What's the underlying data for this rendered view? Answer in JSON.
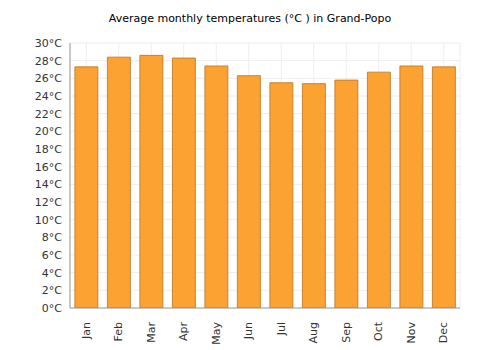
{
  "chart_data": {
    "type": "bar",
    "title": "Average monthly temperatures (°C ) in Grand-Popo",
    "categories": [
      "Jan",
      "Feb",
      "Mar",
      "Apr",
      "May",
      "Jun",
      "Jul",
      "Aug",
      "Sep",
      "Oct",
      "Nov",
      "Dec"
    ],
    "values": [
      27.3,
      28.4,
      28.6,
      28.3,
      27.4,
      26.3,
      25.5,
      25.4,
      25.8,
      26.7,
      27.4,
      27.3
    ],
    "color": "#fca232",
    "ylim": [
      0,
      30
    ],
    "yticks": [
      {
        "value": 0,
        "label": "0°C"
      },
      {
        "value": 2,
        "label": "2°C"
      },
      {
        "value": 4,
        "label": "4°C"
      },
      {
        "value": 6,
        "label": "6°C"
      },
      {
        "value": 8,
        "label": "8°C"
      },
      {
        "value": 10,
        "label": "10°C"
      },
      {
        "value": 12,
        "label": "12°C"
      },
      {
        "value": 14,
        "label": "14°C"
      },
      {
        "value": 16,
        "label": "16°C"
      },
      {
        "value": 18,
        "label": "18°C"
      },
      {
        "value": 20,
        "label": "20°C"
      },
      {
        "value": 22,
        "label": "22°C"
      },
      {
        "value": 24,
        "label": "24°C"
      },
      {
        "value": 26,
        "label": "26°C"
      },
      {
        "value": 28,
        "label": "28°C"
      },
      {
        "value": 30,
        "label": "30°C"
      }
    ],
    "grid": true
  }
}
